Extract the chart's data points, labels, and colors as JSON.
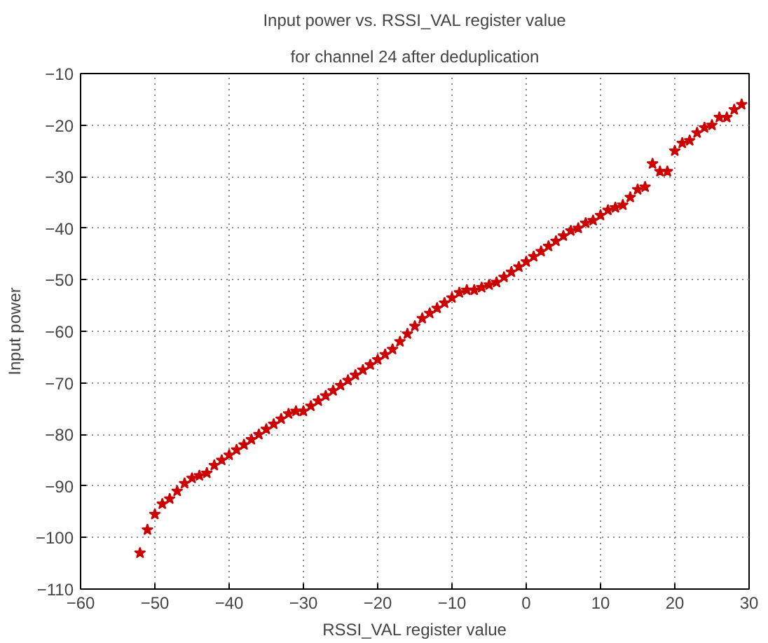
{
  "chart_data": {
    "type": "scatter",
    "title": "Input power vs. RSSI_VAL register value",
    "subtitle": "for channel 24 after deduplication",
    "xlabel": "RSSI_VAL register value",
    "ylabel": "Input power",
    "xlim": [
      -60,
      30
    ],
    "ylim": [
      -110,
      -10
    ],
    "xticks": [
      -60,
      -50,
      -40,
      -30,
      -20,
      -10,
      0,
      10,
      20,
      30
    ],
    "yticks": [
      -110,
      -100,
      -90,
      -80,
      -70,
      -60,
      -50,
      -40,
      -30,
      -20,
      -10
    ],
    "grid": true,
    "marker": "star",
    "series": [
      {
        "color": "#cc0000",
        "x": [
          -52,
          -51,
          -50,
          -49,
          -48,
          -47,
          -46,
          -45,
          -44,
          -43,
          -42,
          -41,
          -40,
          -39,
          -38,
          -37,
          -36,
          -35,
          -34,
          -33,
          -32,
          -31,
          -30,
          -29,
          -28,
          -27,
          -26,
          -25,
          -24,
          -23,
          -22,
          -21,
          -20,
          -19,
          -18,
          -17,
          -16,
          -15,
          -14,
          -13,
          -12,
          -11,
          -10,
          -9,
          -8,
          -7,
          -6,
          -5,
          -4,
          -3,
          -2,
          -1,
          0,
          1,
          2,
          3,
          4,
          5,
          6,
          7,
          8,
          9,
          10,
          11,
          12,
          13,
          14,
          15,
          16,
          17,
          18,
          19,
          20,
          21,
          22,
          23,
          24,
          25,
          26,
          27,
          28,
          29
        ],
        "values": [
          -103,
          -98.5,
          -95.5,
          -93.5,
          -92.5,
          -91,
          -89.5,
          -88.5,
          -88,
          -87.5,
          -86,
          -85,
          -84,
          -83,
          -82,
          -81,
          -80,
          -79,
          -78,
          -77,
          -76,
          -75.5,
          -75.5,
          -74.5,
          -73.5,
          -72.5,
          -71.5,
          -70.5,
          -69.5,
          -68.5,
          -67.5,
          -66.5,
          -65.5,
          -64.5,
          -63.5,
          -62,
          -60.5,
          -59,
          -57.5,
          -56.5,
          -55.5,
          -54.5,
          -53.5,
          -52.5,
          -52,
          -52,
          -51.5,
          -51,
          -50.5,
          -49.5,
          -48.5,
          -47.5,
          -46.5,
          -45.5,
          -44.5,
          -43.5,
          -42.5,
          -41.5,
          -40.5,
          -40,
          -39,
          -38.5,
          -37.5,
          -36.5,
          -36,
          -35.5,
          -34,
          -32.5,
          -32,
          -27.5,
          -29,
          -29,
          -25,
          -23.5,
          -23,
          -21.5,
          -20.5,
          -20,
          -18.5,
          -18.5,
          -17,
          -16
        ]
      }
    ]
  }
}
